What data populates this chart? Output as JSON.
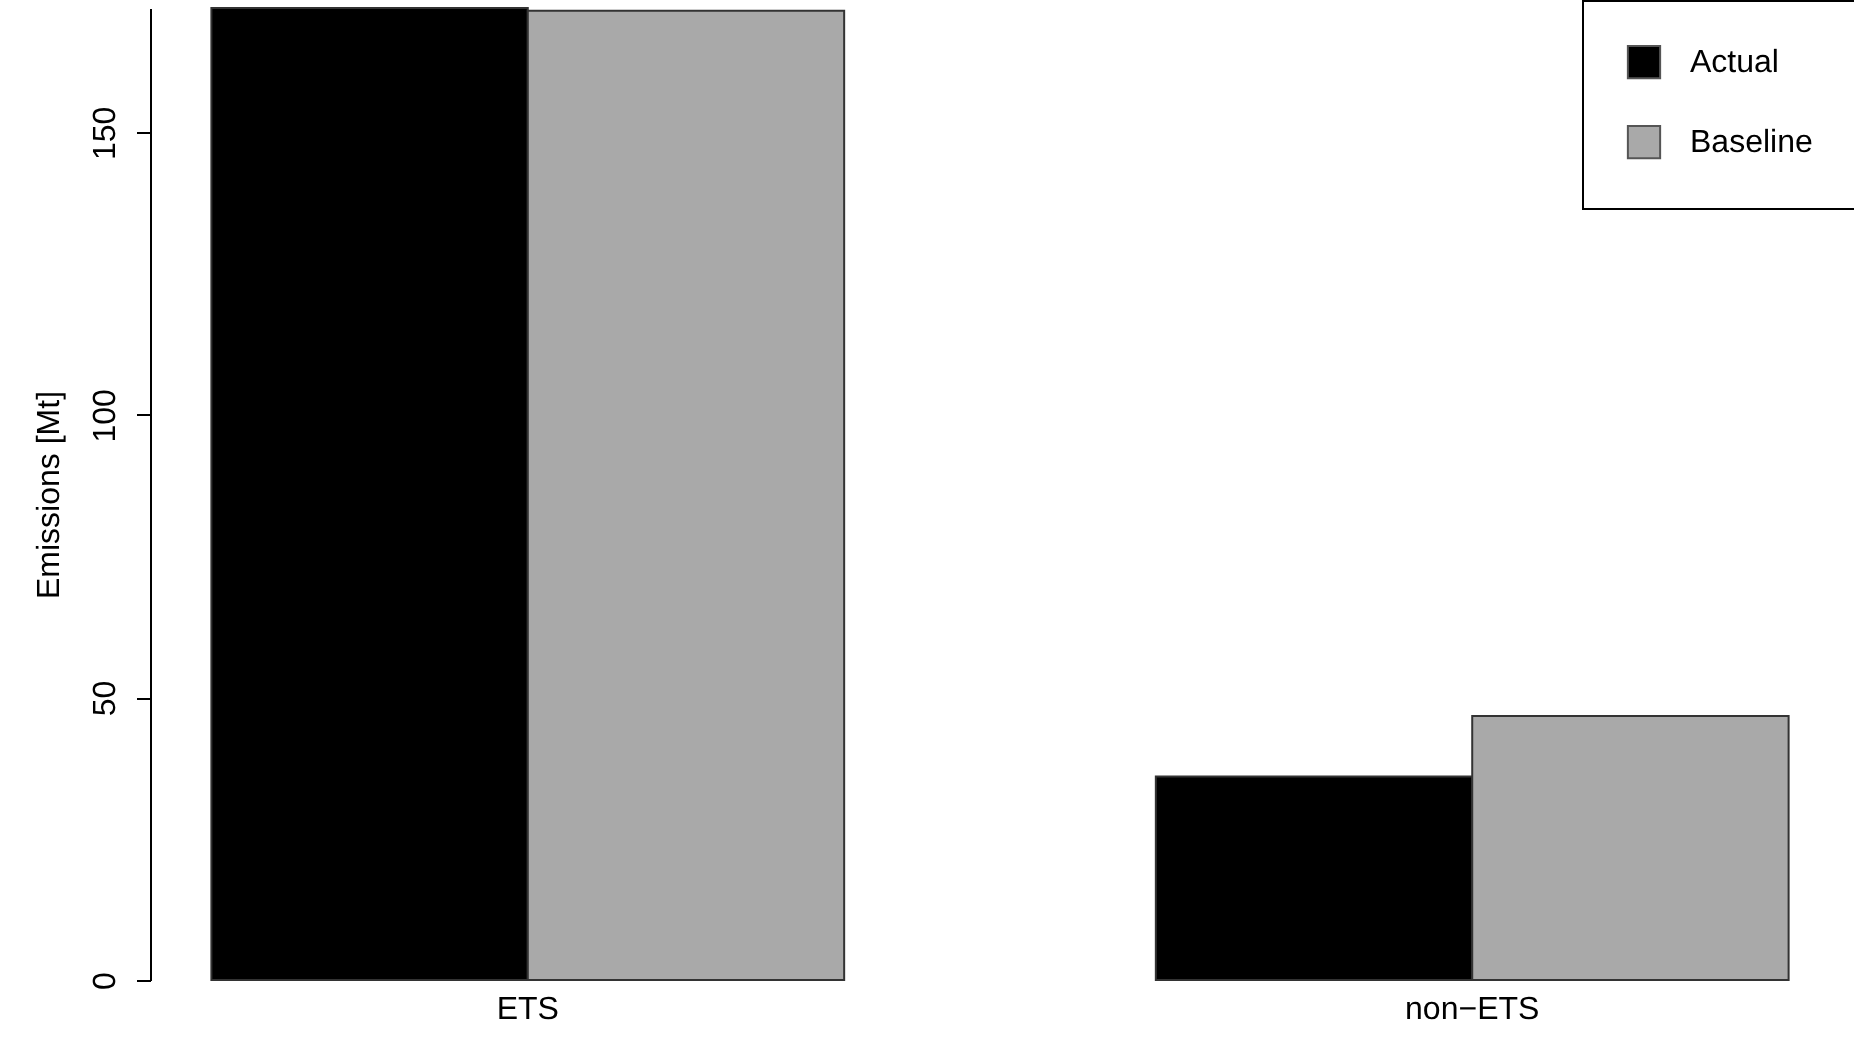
{
  "chart_data": {
    "type": "bar",
    "ylabel": "Emissions [Mt]",
    "categories": [
      "ETS",
      "non−ETS"
    ],
    "series": [
      {
        "name": "Actual",
        "color": "#000000",
        "values": [
          172,
          36
        ]
      },
      {
        "name": "Baseline",
        "color": "#a9a9a9",
        "values": [
          171.5,
          46.7
        ]
      }
    ],
    "ylim": [
      0,
      172
    ],
    "yticks": [
      0,
      50,
      100,
      150
    ],
    "grid": false,
    "legend": "top right"
  }
}
